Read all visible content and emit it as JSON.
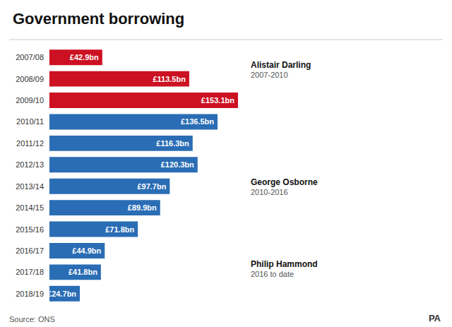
{
  "chart_data": {
    "type": "bar",
    "orientation": "horizontal",
    "title": "Government borrowing",
    "categories": [
      "2007/08",
      "2008/09",
      "2009/10",
      "2010/11",
      "2011/12",
      "2012/13",
      "2013/14",
      "2014/15",
      "2015/16",
      "2016/17",
      "2017/18",
      "2018/19"
    ],
    "values": [
      42.9,
      113.5,
      153.1,
      136.5,
      116.3,
      120.3,
      97.7,
      89.9,
      71.8,
      44.9,
      41.8,
      24.7
    ],
    "value_labels": [
      "£42.9bn",
      "£113.5bn",
      "£153.1bn",
      "£136.5bn",
      "£116.3bn",
      "£120.3bn",
      "£97.7bn",
      "£89.9bn",
      "£71.8bn",
      "£44.9bn",
      "£41.8bn",
      "£24.7bn"
    ],
    "colors": [
      "#cc1122",
      "#cc1122",
      "#cc1122",
      "#2a6db5",
      "#2a6db5",
      "#2a6db5",
      "#2a6db5",
      "#2a6db5",
      "#2a6db5",
      "#2a6db5",
      "#2a6db5",
      "#2a6db5"
    ],
    "data_labels": true,
    "xlim": [
      0,
      160
    ],
    "tick_labels": "y",
    "grid": false,
    "annotations": [
      "Alistair Darling",
      "2007-2010",
      "George Osborne",
      "2010-2016",
      "Philip Hammond",
      "2016 to date",
      "Source: ONS",
      "PA"
    ]
  }
}
